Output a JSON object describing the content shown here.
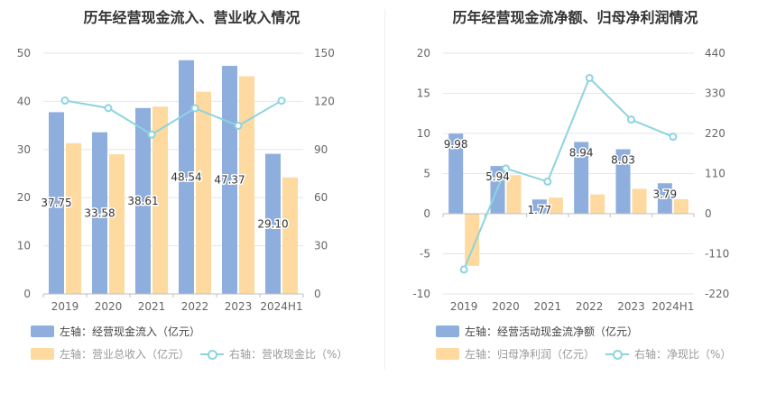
{
  "chart_data": [
    {
      "type": "bar",
      "title": "历年经营现金流入、营业收入情况",
      "categories": [
        "2019",
        "2020",
        "2021",
        "2022",
        "2023",
        "2024H1"
      ],
      "left_axis": {
        "ylim": [
          0,
          50
        ],
        "ticks": [
          "0",
          "10",
          "20",
          "30",
          "40",
          "50"
        ]
      },
      "right_axis": {
        "ylim": [
          0,
          150
        ],
        "ticks": [
          "0",
          "30",
          "60",
          "90",
          "120",
          "150"
        ]
      },
      "series": [
        {
          "name": "左轴：经营现金流入（亿元）",
          "axis": "left",
          "type": "bar",
          "color": "#8eaedd",
          "values": [
            37.75,
            33.58,
            38.61,
            48.54,
            47.37,
            29.1
          ],
          "labels": [
            "37.75",
            "33.58",
            "38.61",
            "48.54",
            "47.37",
            "29.10"
          ]
        },
        {
          "name": "左轴：营业总收入（亿元）",
          "axis": "left",
          "type": "bar",
          "color": "#fed9a0",
          "values": [
            31.3,
            29.0,
            38.9,
            42.0,
            45.2,
            24.2
          ]
        },
        {
          "name": "右轴：营收现金比（%）",
          "axis": "right",
          "type": "line",
          "color": "#8dd4df",
          "values": [
            120.5,
            115.8,
            99.3,
            115.7,
            104.8,
            120.4
          ]
        }
      ],
      "grid": true,
      "legend_placement": "bottom"
    },
    {
      "type": "bar",
      "title": "历年经营现金流净额、归母净利润情况",
      "categories": [
        "2019",
        "2020",
        "2021",
        "2022",
        "2023",
        "2024H1"
      ],
      "left_axis": {
        "ylim": [
          -10,
          20
        ],
        "ticks": [
          "-10",
          "-5",
          "0",
          "5",
          "10",
          "15",
          "20"
        ]
      },
      "right_axis": {
        "ylim": [
          -220,
          440
        ],
        "ticks": [
          "-220",
          "-110",
          "0",
          "110",
          "220",
          "330",
          "440"
        ]
      },
      "series": [
        {
          "name": "左轴：经营活动现金流净额（亿元）",
          "axis": "left",
          "type": "bar",
          "color": "#8eaedd",
          "values": [
            9.98,
            5.94,
            1.77,
            8.94,
            8.03,
            3.79
          ],
          "labels": [
            "9.98",
            "5.94",
            "1.77",
            "8.94",
            "8.03",
            "3.79"
          ]
        },
        {
          "name": "左轴：归母净利润（亿元）",
          "axis": "left",
          "type": "bar",
          "color": "#fed9a0",
          "values": [
            -6.5,
            4.8,
            2.0,
            2.4,
            3.1,
            1.8
          ]
        },
        {
          "name": "右轴：净现比（%）",
          "axis": "right",
          "type": "line",
          "color": "#8dd4df",
          "values": [
            -153,
            124,
            88,
            372,
            258,
            211
          ]
        }
      ],
      "grid": true,
      "legend_placement": "bottom"
    }
  ]
}
